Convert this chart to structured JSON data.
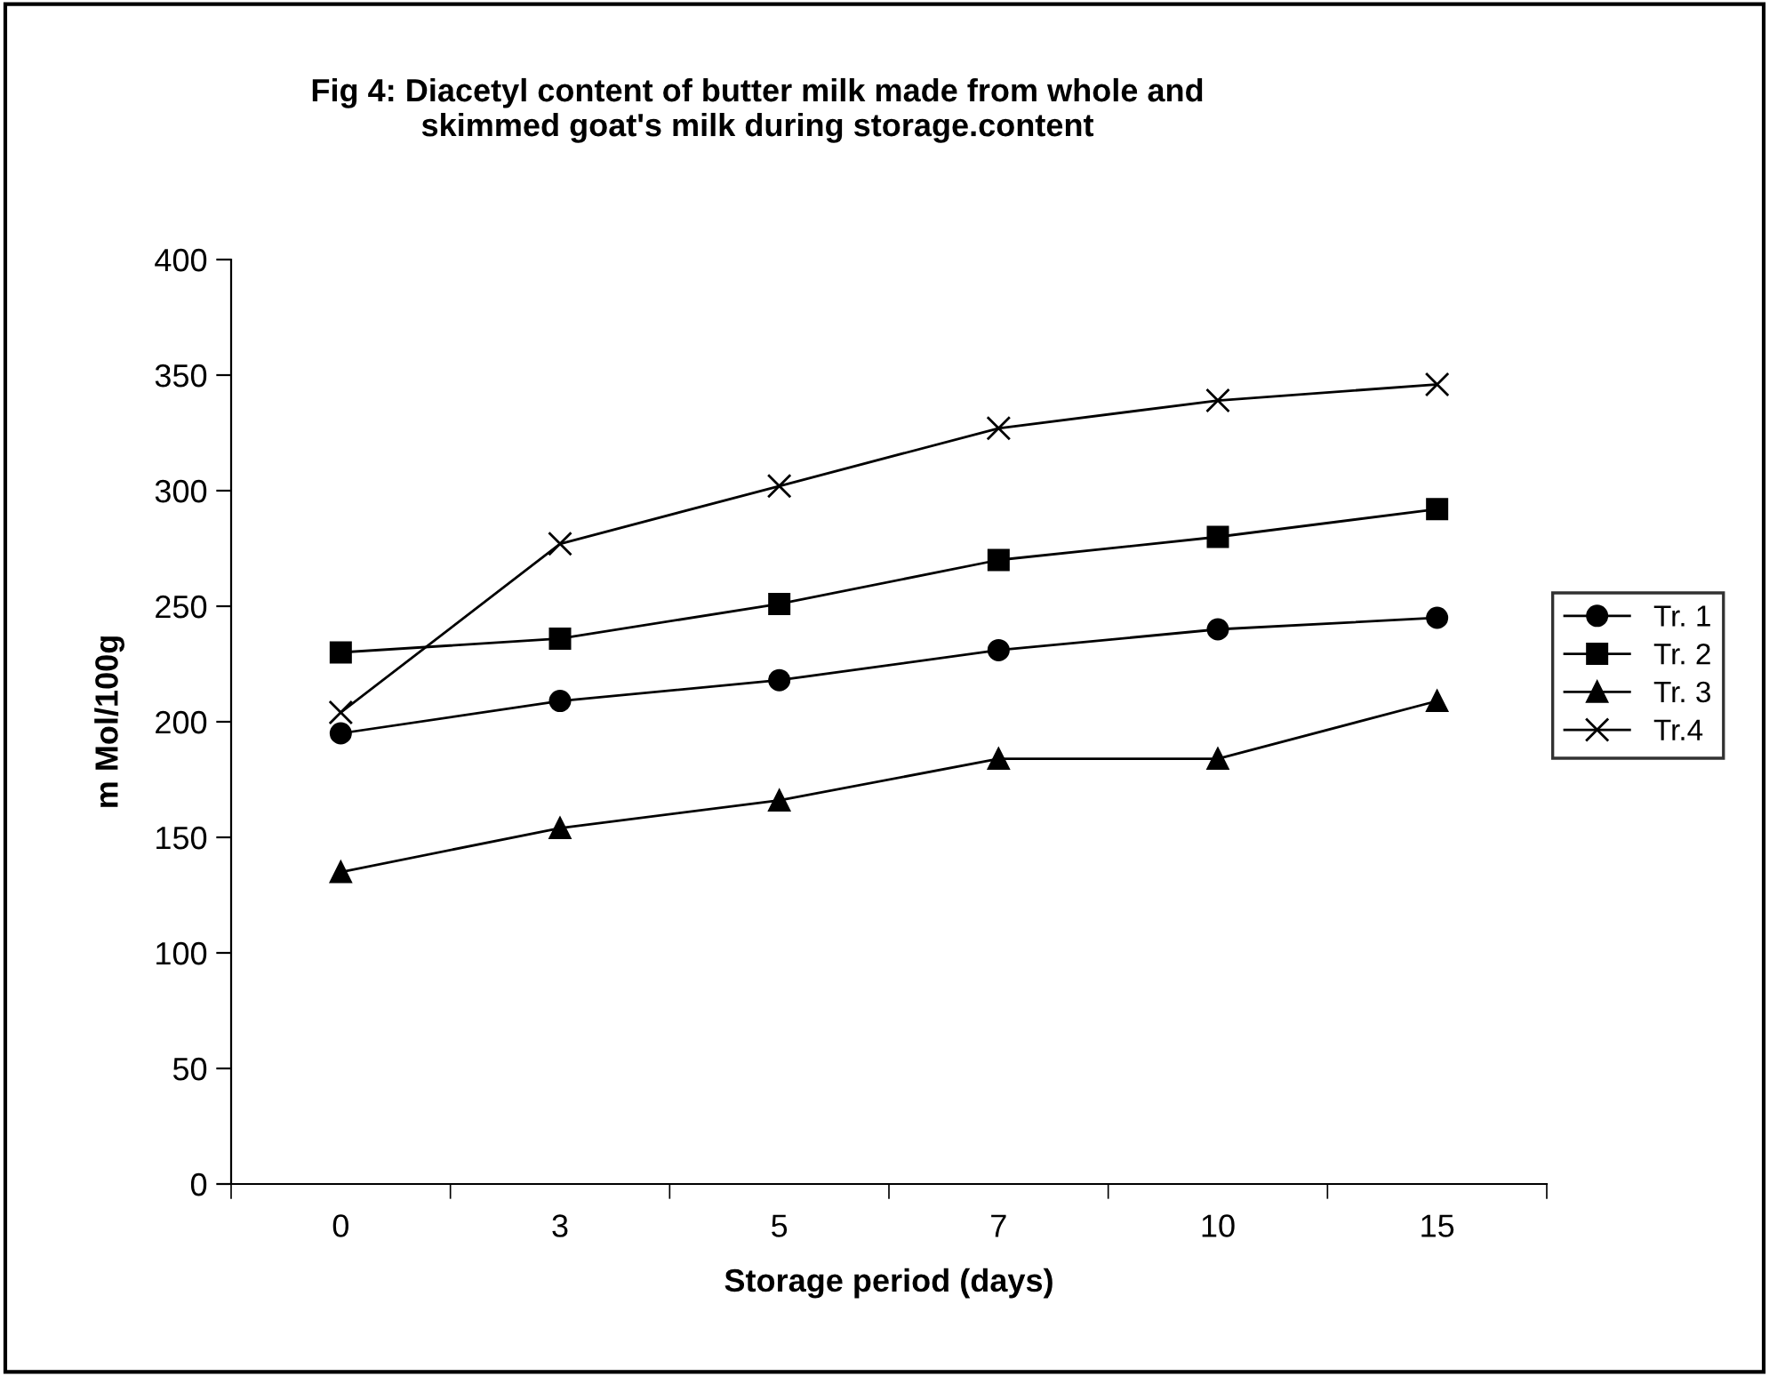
{
  "chart_data": {
    "type": "line",
    "title": "Fig 4: Diacetyl content of butter milk made from whole and\nskimmed goat's milk during storage.content",
    "xlabel": "Storage period (days)",
    "ylabel": "m Mol/100g",
    "categories": [
      "0",
      "3",
      "5",
      "7",
      "10",
      "15"
    ],
    "series": [
      {
        "name": "Tr. 1",
        "color": "#000000",
        "marker": "circle",
        "values": [
          195,
          209,
          218,
          231,
          240,
          245
        ]
      },
      {
        "name": "Tr. 2",
        "color": "#000000",
        "marker": "square",
        "values": [
          230,
          236,
          251,
          270,
          280,
          292
        ]
      },
      {
        "name": "Tr. 3",
        "color": "#000000",
        "marker": "triangle",
        "values": [
          135,
          154,
          166,
          184,
          184,
          209
        ]
      },
      {
        "name": "Tr.4",
        "color": "#000000",
        "marker": "cross",
        "values": [
          204,
          277,
          302,
          327,
          339,
          346
        ]
      }
    ],
    "ylim": [
      0,
      400
    ],
    "yticks": [
      0,
      50,
      100,
      150,
      200,
      250,
      300,
      350,
      400
    ],
    "grid": false,
    "legend": "right",
    "line_style": "solid"
  }
}
